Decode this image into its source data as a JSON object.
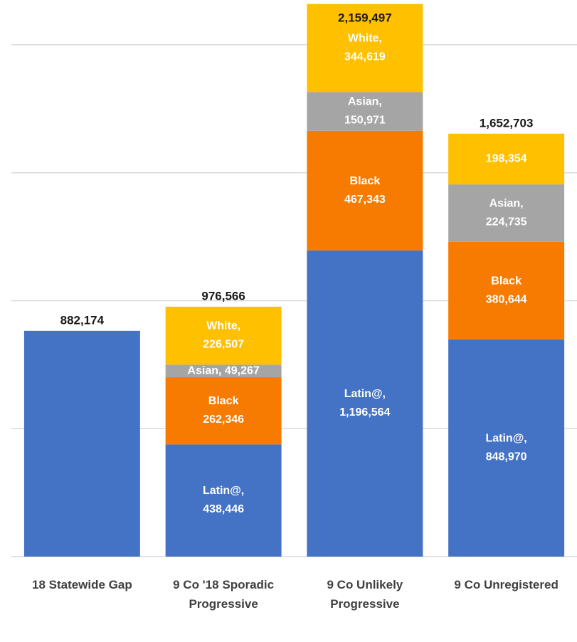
{
  "chart_data": {
    "type": "stacked_bar",
    "categories": [
      "18 Statewide Gap",
      "9 Co '18 Sporadic Progressive",
      "9 Co Unlikely Progressive",
      "9 Co Unregistered"
    ],
    "series": [
      {
        "name": "Latin@",
        "color": "#4472c4",
        "values": [
          882174,
          438446,
          1196564,
          848970
        ],
        "value_labels": [
          null,
          "Latin@, 438,446",
          "Latin@, 1,196,564",
          "Latin@, 848,970"
        ]
      },
      {
        "name": "Black",
        "color": "#f77b00",
        "values": [
          null,
          262346,
          467343,
          380644
        ],
        "value_labels": [
          null,
          "Black 262,346",
          "Black 467,343",
          "Black 380,644"
        ]
      },
      {
        "name": "Asian",
        "color": "#a5a5a5",
        "values": [
          null,
          49267,
          150971,
          224735
        ],
        "value_labels": [
          null,
          "Asian, 49,267",
          "Asian, 150,971",
          "Asian, 224,735"
        ]
      },
      {
        "name": "White",
        "color": "#ffc000",
        "values": [
          null,
          226507,
          344619,
          198354
        ],
        "value_labels": [
          null,
          "White, 226,507",
          "White, 344,619",
          "198,354"
        ]
      }
    ],
    "totals": [
      882174,
      976566,
      2159497,
      1652703
    ],
    "total_labels": [
      "882,174",
      "976,566",
      "2,159,497",
      "1,652,703"
    ],
    "ylim": [
      0,
      2175000
    ],
    "yticks": [
      0,
      500000,
      1000000,
      1500000,
      2000000
    ],
    "grid": true
  }
}
